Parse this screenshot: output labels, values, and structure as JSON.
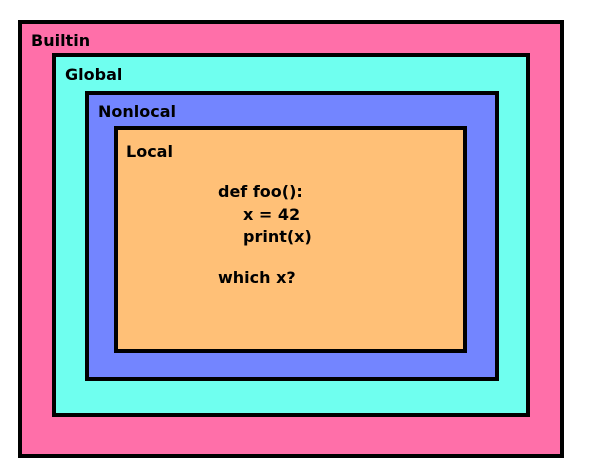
{
  "scopes": {
    "builtin": {
      "label": "Builtin",
      "color": "#ff6fa9"
    },
    "global": {
      "label": "Global",
      "color": "#6fffef"
    },
    "nonlocal": {
      "label": "Nonlocal",
      "color": "#7385ff"
    },
    "local": {
      "label": "Local",
      "color": "#ffc077"
    }
  },
  "code": {
    "line1": "def foo():",
    "line2": "x = 42",
    "line3": "print(x)",
    "question": "which x?"
  }
}
